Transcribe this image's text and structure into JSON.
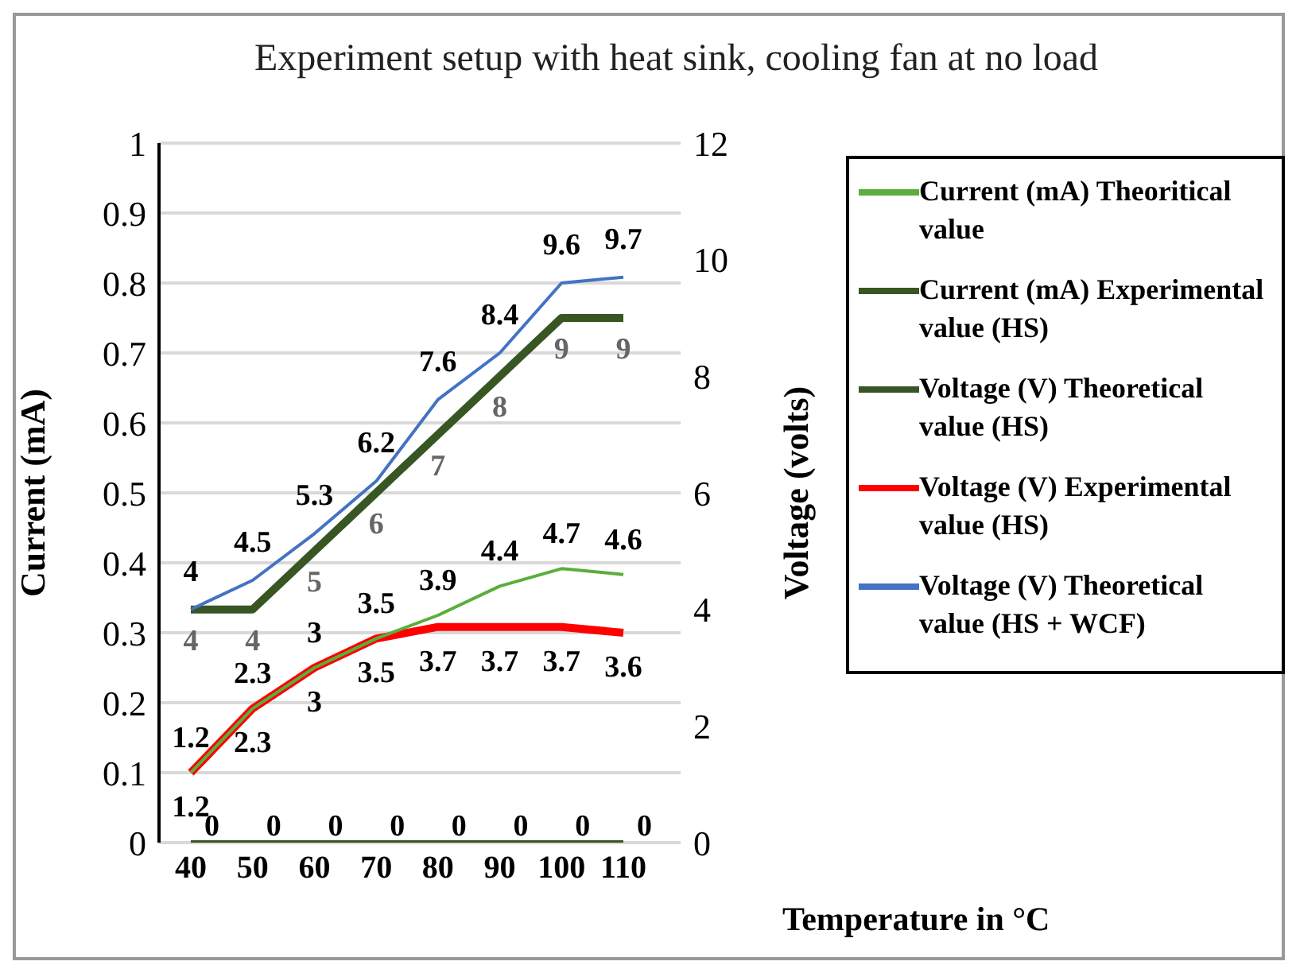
{
  "chart_data": {
    "type": "line",
    "title": "Experiment setup with heat sink, cooling fan at no load",
    "xlabel": "Temperature in °C",
    "ylabel": "Current (mA)",
    "y2label": "Voltage (volts)",
    "categories": [
      "40",
      "50",
      "60",
      "70",
      "80",
      "90",
      "100",
      "110"
    ],
    "ylim": [
      0,
      1
    ],
    "yticks": [
      0,
      0.1,
      0.2,
      0.3,
      0.4,
      0.5,
      0.6,
      0.7,
      0.8,
      0.9,
      1
    ],
    "y2lim": [
      0,
      12
    ],
    "y2ticks": [
      0,
      2,
      4,
      6,
      8,
      10,
      12
    ],
    "grid": "y",
    "legend": "right",
    "data_labels": true,
    "marker": "none",
    "series": [
      {
        "name": "Current (mA) Theoritical value",
        "color": "#5aae3c",
        "axis": "y2",
        "values": [
          1.2,
          2.3,
          3,
          3.5,
          3.9,
          4.4,
          4.7,
          4.6
        ]
      },
      {
        "name": "Current (mA) Experimental value (HS)",
        "color": "#375623",
        "values": [
          0,
          0,
          0,
          0,
          0,
          0,
          0,
          0
        ]
      },
      {
        "name": "Voltage (V) Theoretical value (HS)",
        "color": "#375623",
        "axis": "y2",
        "values": [
          4,
          4,
          5,
          6,
          7,
          8,
          9,
          9
        ]
      },
      {
        "name": "Voltage (V) Experimental value (HS)",
        "color": "#ff0000",
        "axis": "y2",
        "values": [
          1.2,
          2.3,
          3,
          3.5,
          3.7,
          3.7,
          3.7,
          3.6
        ]
      },
      {
        "name": "Voltage (V) Theoretical value (HS + WCF)",
        "color": "#4472c4",
        "axis": "y2",
        "values": [
          4,
          4.5,
          5.3,
          6.2,
          7.6,
          8.4,
          9.6,
          9.7
        ]
      }
    ]
  }
}
